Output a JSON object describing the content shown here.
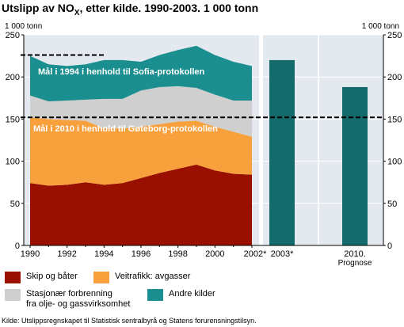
{
  "title": {
    "prefix": "Utslipp av NO",
    "subscript": "X",
    "suffix": ", etter kilde. 1990-2003. 1 000 tonn"
  },
  "source": "Kilde: Utslippsregnskapet til Statistisk sentralbyrå og Statens forurensningstilsyn.",
  "colors": {
    "skip": "#9a1000",
    "veitrafikk": "#f7a03c",
    "stasjonaer": "#cfcfcf",
    "andre": "#1b8f8f",
    "future_bar": "#156b6b",
    "panel_bg": "#e4e9ef"
  },
  "chart_data": {
    "type": "area",
    "stacked": true,
    "unit_label_left": "1 000 tonn",
    "unit_label_right": "1 000 tonn",
    "ylim": [
      0,
      250
    ],
    "yticks": [
      0,
      50,
      100,
      150,
      200,
      250
    ],
    "x": [
      1990,
      1991,
      1992,
      1993,
      1994,
      1995,
      1996,
      1997,
      1998,
      1999,
      2000,
      2001,
      2002
    ],
    "xtick_labels": [
      "1990",
      "1992",
      "1994",
      "1996",
      "1998",
      "2000",
      "2002*"
    ],
    "xtick_values": [
      1990,
      1992,
      1994,
      1996,
      1998,
      2000,
      2002
    ],
    "series": [
      {
        "name": "Skip og båter",
        "color_key": "skip",
        "values": [
          74,
          71,
          72,
          75,
          72,
          74,
          80,
          86,
          91,
          96,
          89,
          85,
          84
        ]
      },
      {
        "name": "Veitrafikk: avgasser",
        "color_key": "veitrafikk",
        "values": [
          78,
          79,
          77,
          73,
          67,
          65,
          61,
          58,
          56,
          52,
          52,
          50,
          45
        ]
      },
      {
        "name": "Stasjonær forbrenning fra olje- og gassvirksomhet",
        "color_key": "stasjonaer",
        "values": [
          26,
          21,
          23,
          25,
          35,
          35,
          43,
          44,
          42,
          39,
          38,
          37,
          43
        ]
      },
      {
        "name": "Andre kilder",
        "color_key": "andre",
        "values": [
          47,
          44,
          41,
          42,
          46,
          46,
          34,
          38,
          43,
          50,
          47,
          46,
          41
        ]
      }
    ],
    "extra_bars": [
      {
        "label": "2003*",
        "value": 220
      },
      {
        "label": "2010.",
        "sublabel": "Prognose",
        "value": 188
      }
    ],
    "reference_lines": [
      {
        "label": "Mål i 1994 i henhold til Sofia-protokollen",
        "value": 226,
        "x_end": 1994
      },
      {
        "label": "Mål i 2010 i henhold til Gøteborg-protokollen",
        "value": 152
      }
    ],
    "legend": [
      {
        "label": "Skip og båter",
        "color_key": "skip"
      },
      {
        "label": "Veitrafikk: avgasser",
        "color_key": "veitrafikk"
      },
      {
        "label_lines": [
          "Stasjonær forbrenning",
          "fra olje- og gassvirksomhet"
        ],
        "color_key": "stasjonaer"
      },
      {
        "label": "Andre kilder",
        "color_key": "andre"
      }
    ]
  }
}
